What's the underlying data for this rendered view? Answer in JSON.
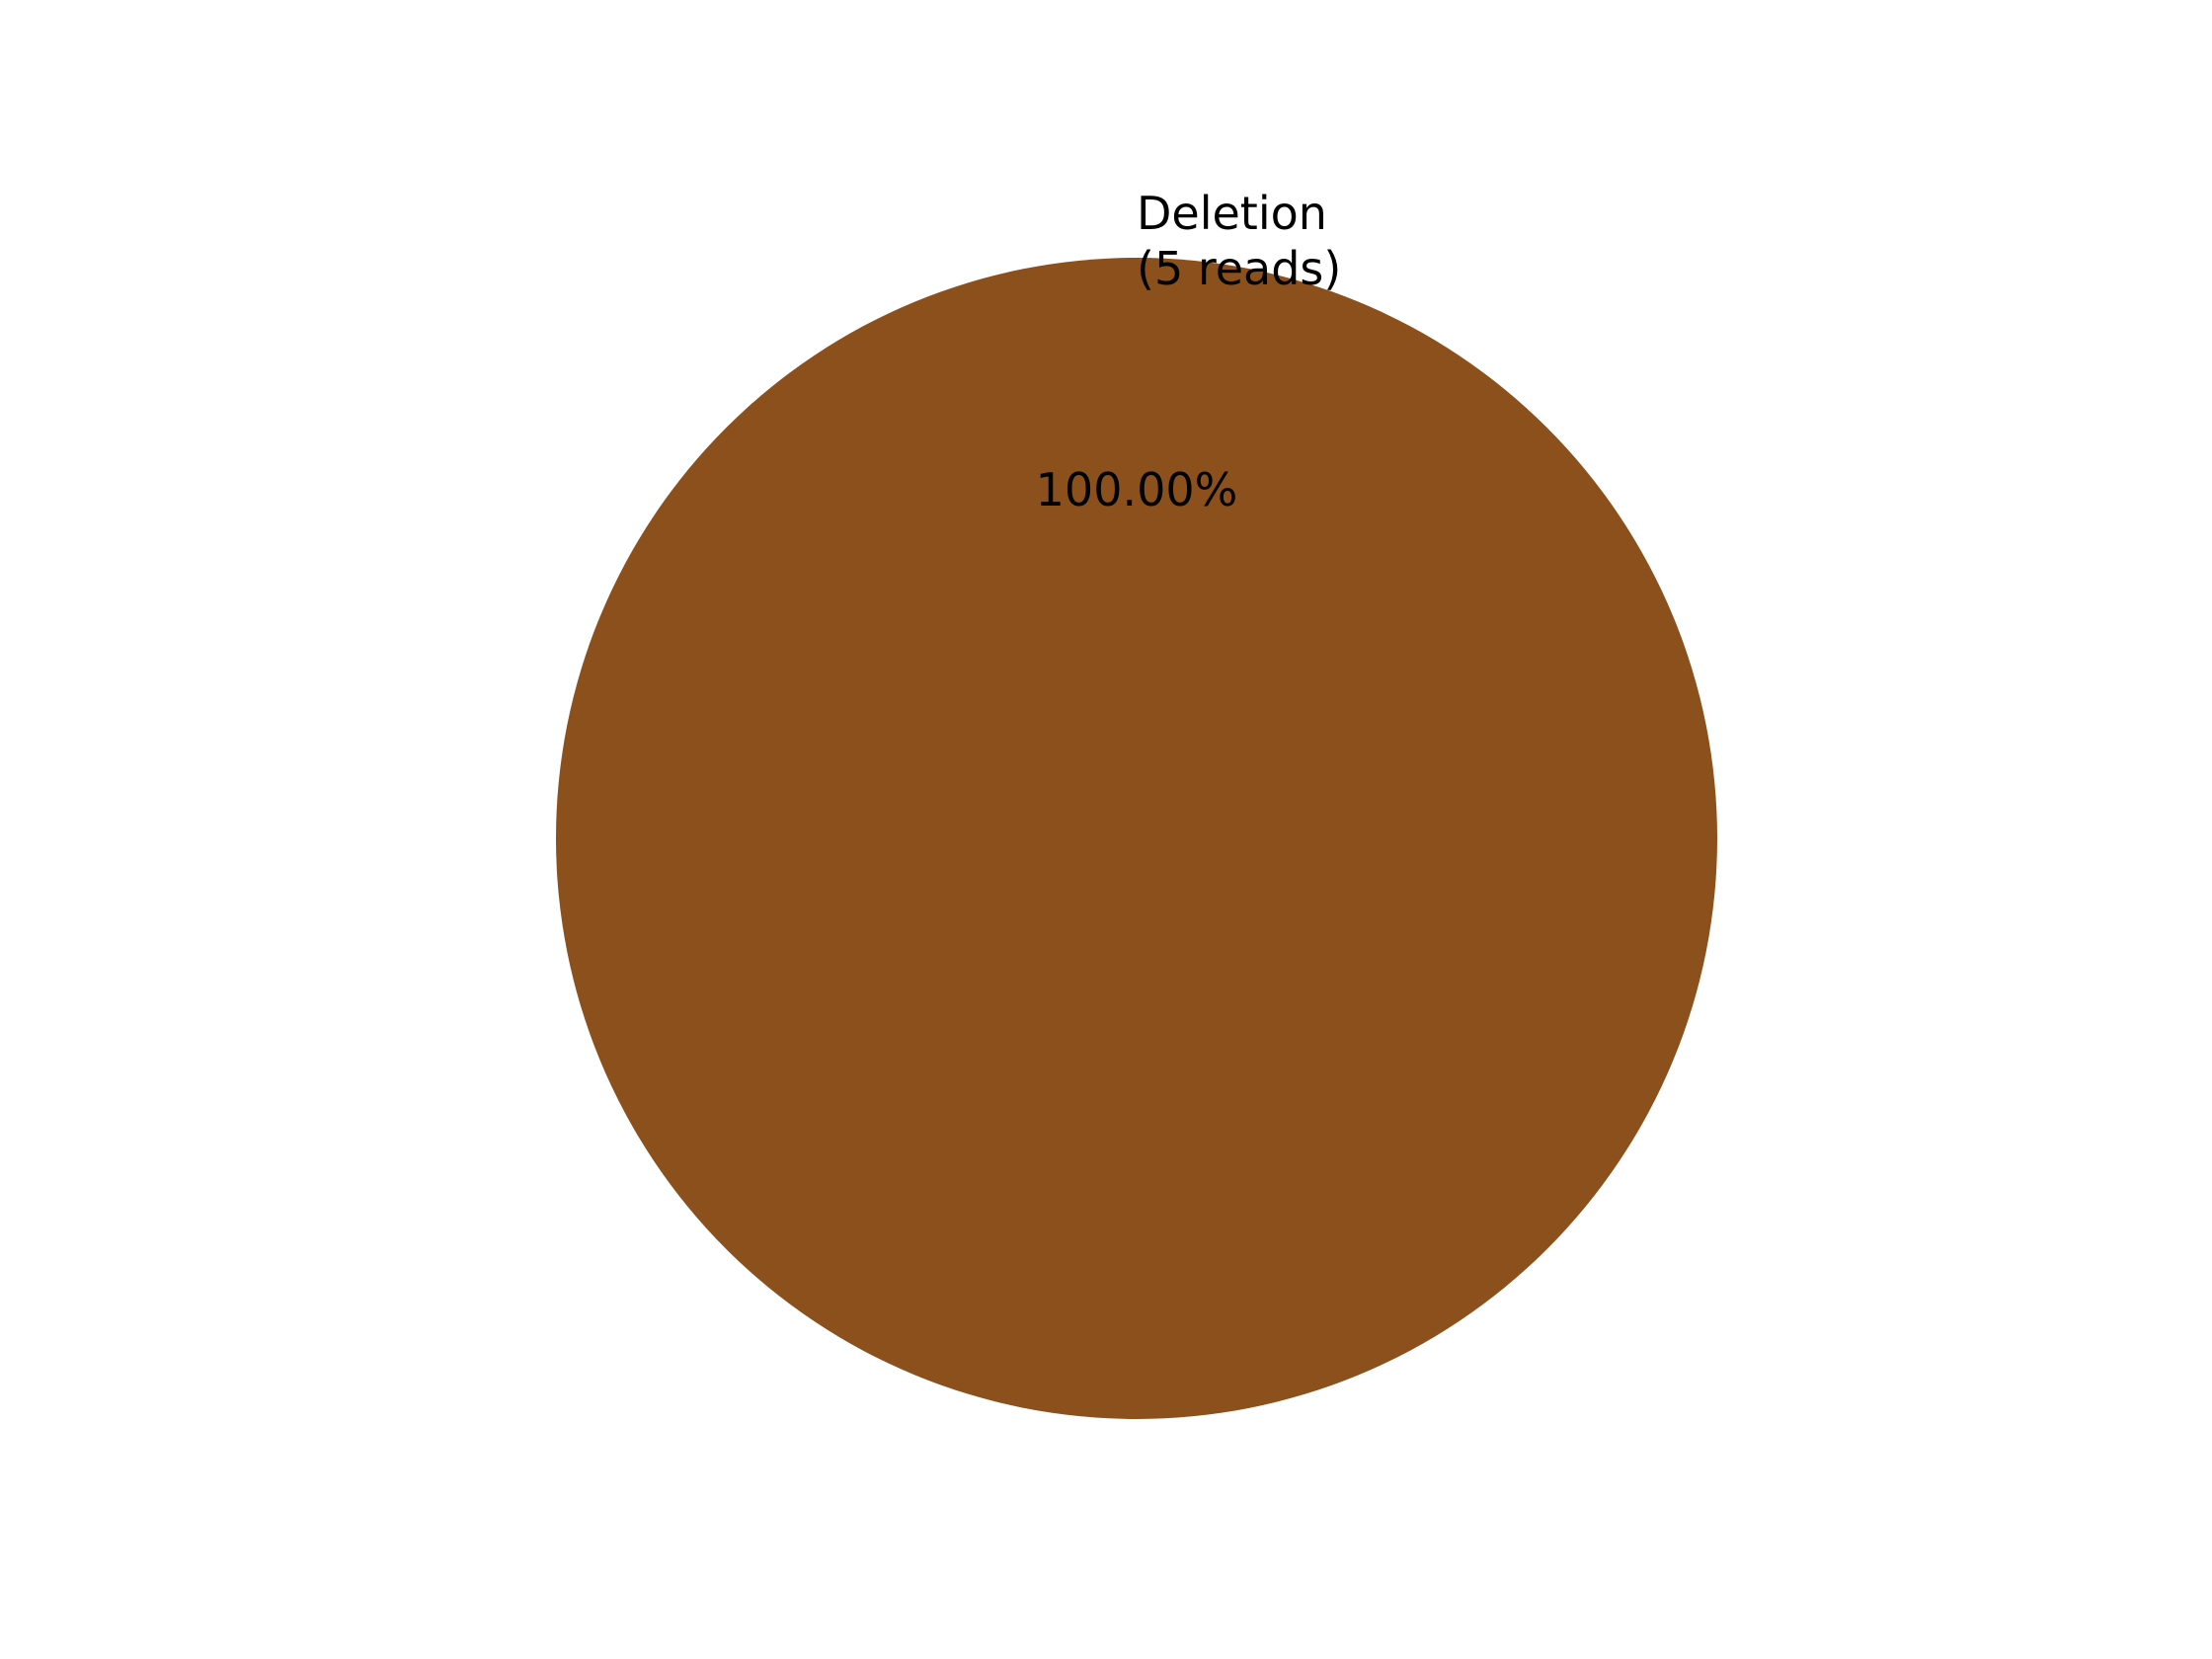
{
  "chart_data": {
    "type": "pie",
    "title": "",
    "slices": [
      {
        "label": "Deletion",
        "reads_label": "(5 reads)",
        "value": 5,
        "percent_label": "100.00%",
        "color": "#8B501C"
      }
    ],
    "legend": "none",
    "grid": false
  }
}
